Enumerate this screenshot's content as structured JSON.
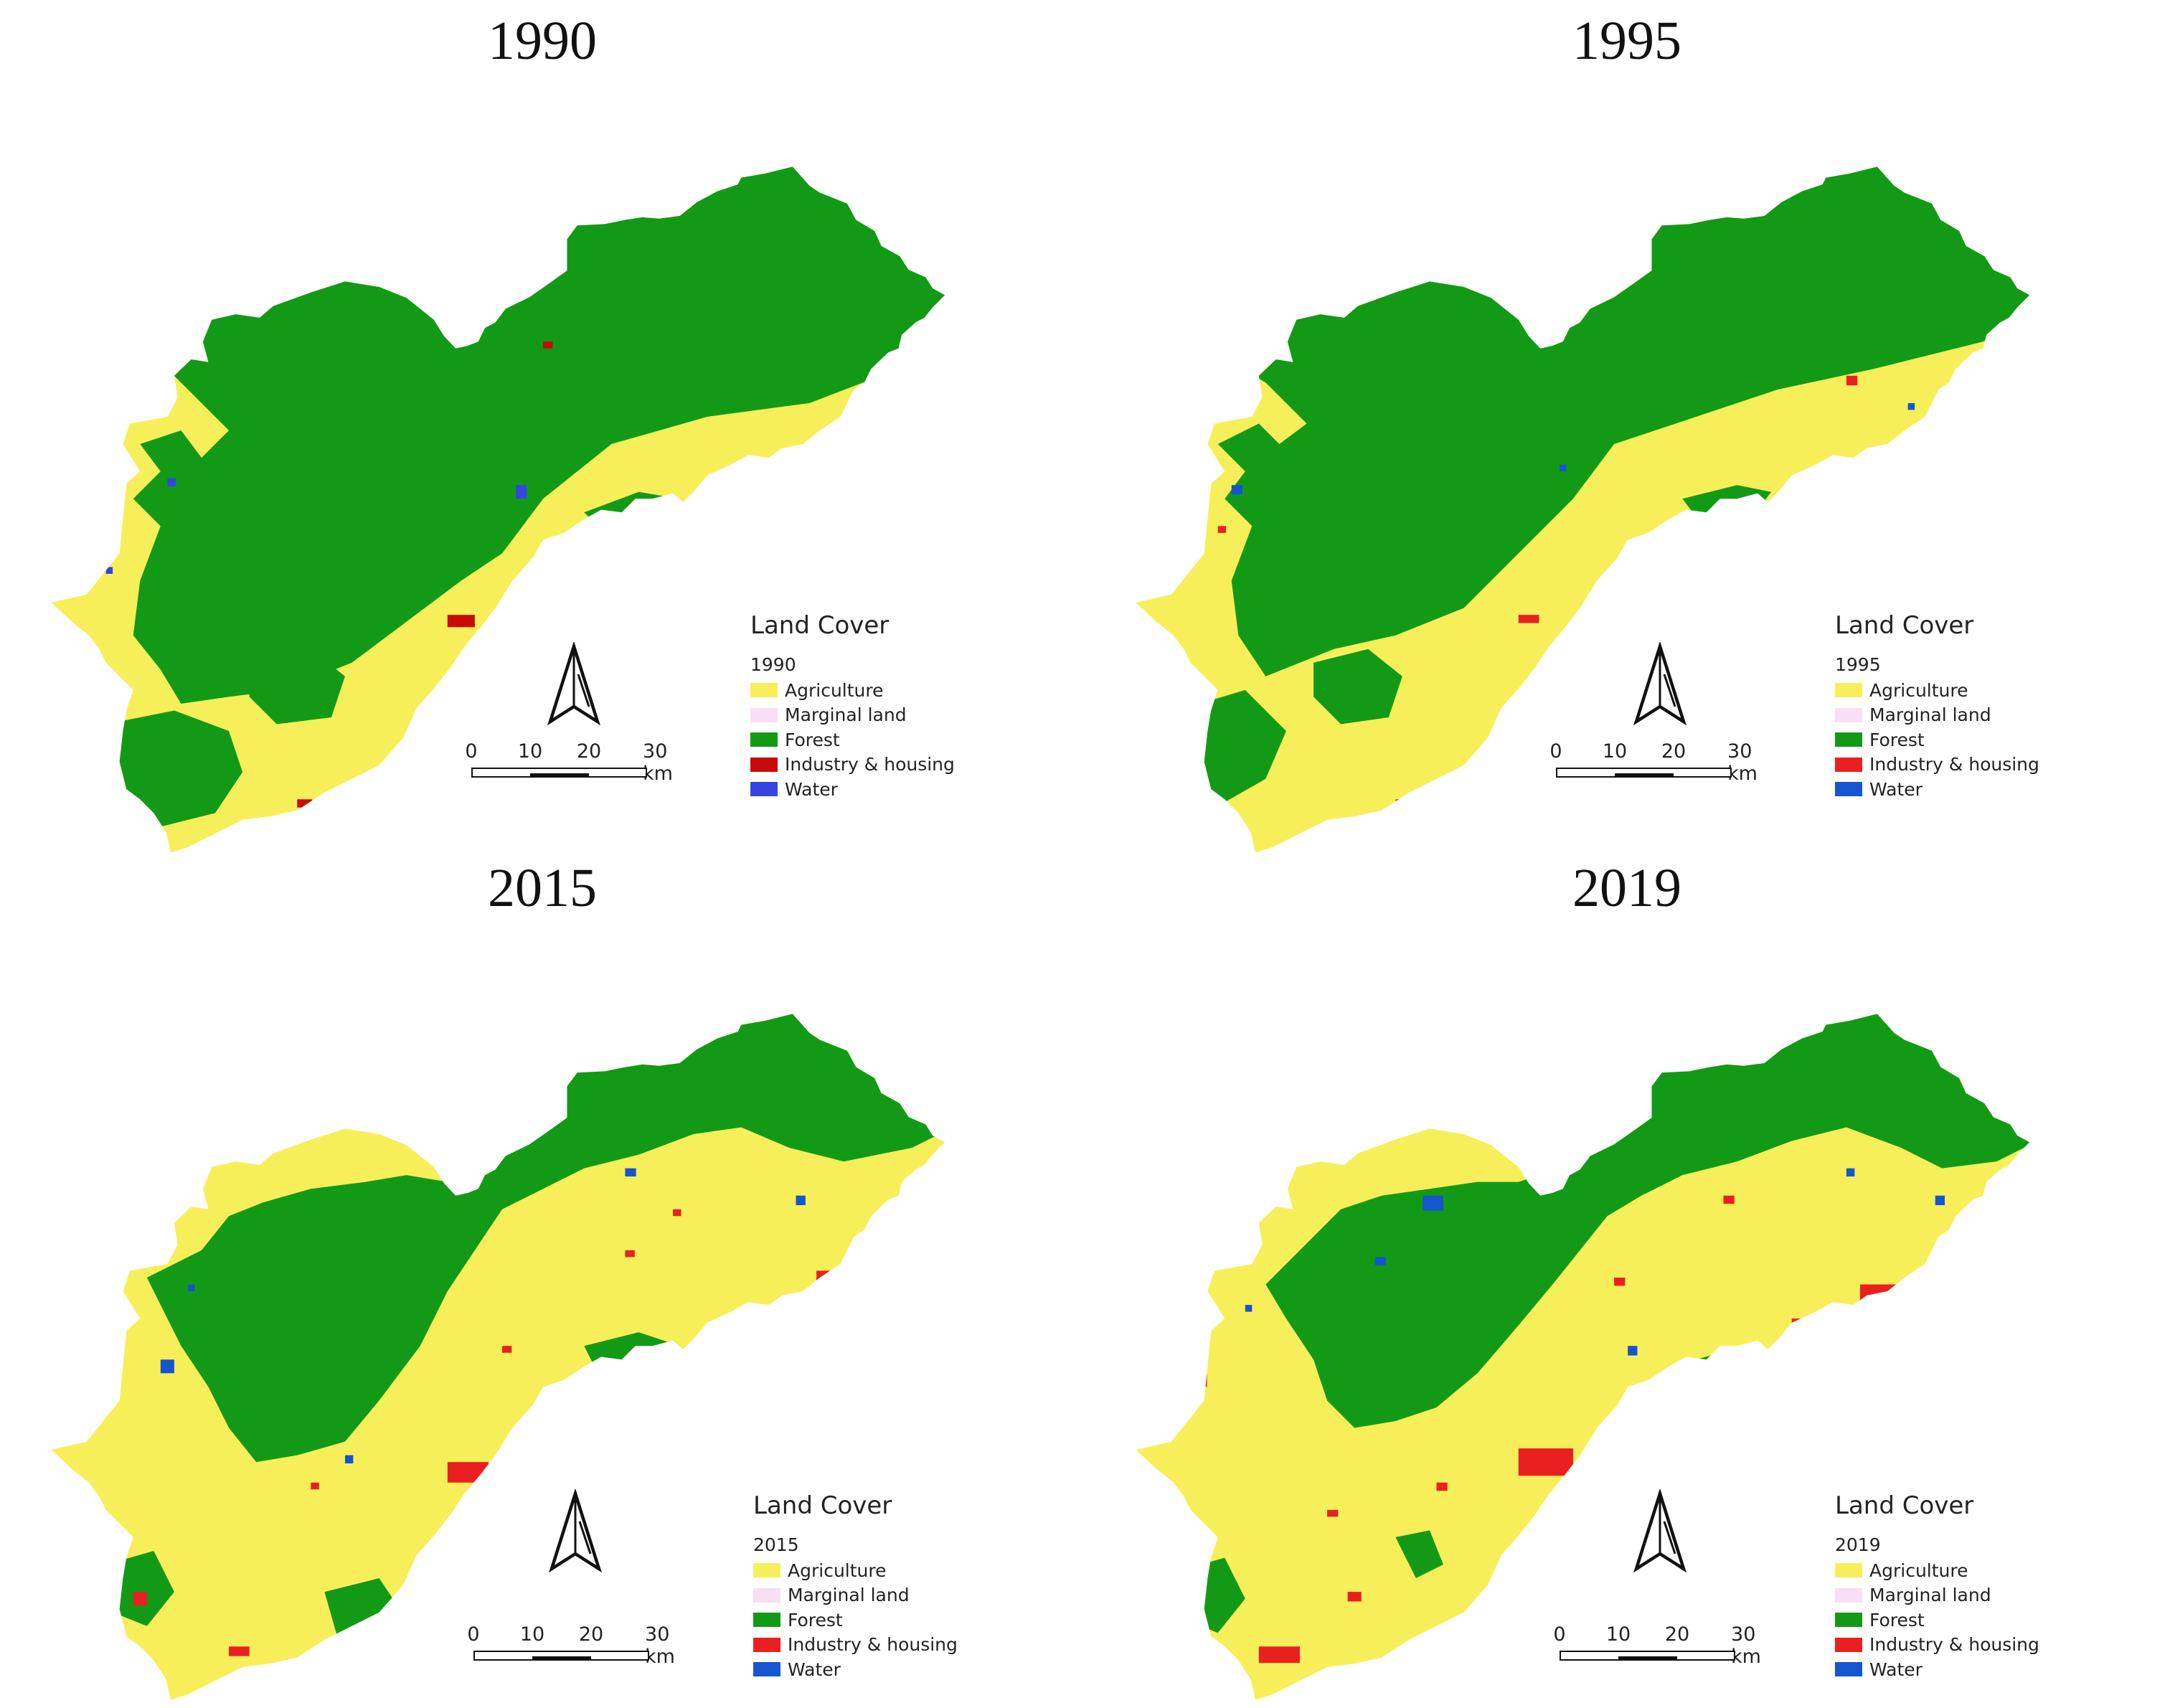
{
  "legend_title": "Land Cover",
  "scale_ticks": [
    "0",
    "10",
    "20",
    "30 km"
  ],
  "icons": {
    "north_arrow": "north-arrow-icon"
  },
  "panels": [
    {
      "year": "1990",
      "legend_year": "1990",
      "legend": [
        {
          "label": "Agriculture",
          "color": "#f7ef5a"
        },
        {
          "label": "Marginal land",
          "color": "#f8dff4"
        },
        {
          "label": "Forest",
          "color": "#129a17"
        },
        {
          "label": "Industry & housing",
          "color": "#c80a0a"
        },
        {
          "label": "Water",
          "color": "#3545e0"
        }
      ]
    },
    {
      "year": "1995",
      "legend_year": "1995",
      "legend": [
        {
          "label": "Agriculture",
          "color": "#f7ef5a"
        },
        {
          "label": "Marginal land",
          "color": "#f8dff4"
        },
        {
          "label": "Forest",
          "color": "#129a17"
        },
        {
          "label": "Industry & housing",
          "color": "#ea2020"
        },
        {
          "label": "Water",
          "color": "#1555d0"
        }
      ]
    },
    {
      "year": "2015",
      "legend_year": "2015",
      "legend": [
        {
          "label": "Agriculture",
          "color": "#f7ef5a"
        },
        {
          "label": "Marginal land",
          "color": "#f8dff4"
        },
        {
          "label": "Forest",
          "color": "#129a17"
        },
        {
          "label": "Industry & housing",
          "color": "#ea2020"
        },
        {
          "label": "Water",
          "color": "#1555d0"
        }
      ]
    },
    {
      "year": "2019",
      "legend_year": "2019",
      "legend": [
        {
          "label": "Agriculture",
          "color": "#f7ef5a"
        },
        {
          "label": "Marginal land",
          "color": "#f8dff4"
        },
        {
          "label": "Forest",
          "color": "#129a17"
        },
        {
          "label": "Industry & housing",
          "color": "#ea2020"
        },
        {
          "label": "Water",
          "color": "#1555d0"
        }
      ]
    }
  ]
}
